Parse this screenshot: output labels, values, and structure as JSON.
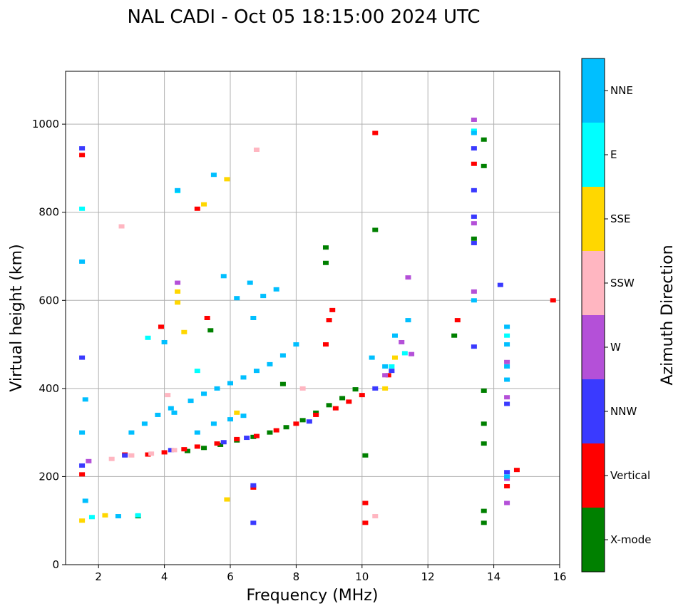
{
  "chart_data": {
    "type": "scatter",
    "title": "NAL CADI - Oct 05 18:15:00 2024 UTC",
    "xlabel": "Frequency (MHz)",
    "ylabel": "Virtual height (km)",
    "xlim": [
      1,
      16
    ],
    "ylim": [
      0,
      1120
    ],
    "xticks": [
      2,
      4,
      6,
      8,
      10,
      12,
      14,
      16
    ],
    "yticks": [
      0,
      200,
      400,
      600,
      800,
      1000
    ],
    "xtick_labels": [
      "2",
      "4",
      "6",
      "8",
      "10",
      "12",
      "14",
      "16"
    ],
    "ytick_labels": [
      "0",
      "200",
      "400",
      "600",
      "800",
      "1000"
    ],
    "grid": true,
    "colorbar": {
      "label": "Azimuth Direction",
      "categories": [
        {
          "name": "X-mode",
          "color": "#008000"
        },
        {
          "name": "Vertical",
          "color": "#ff0000"
        },
        {
          "name": "NNW",
          "color": "#3a3aff"
        },
        {
          "name": "W",
          "color": "#b450d8"
        },
        {
          "name": "SSW",
          "color": "#ffb6c1"
        },
        {
          "name": "SSE",
          "color": "#ffd700"
        },
        {
          "name": "E",
          "color": "#00ffff"
        },
        {
          "name": "NNE",
          "color": "#00bfff"
        }
      ]
    },
    "series": [
      {
        "name": "X-mode",
        "points": [
          [
            4.7,
            258
          ],
          [
            5.2,
            265
          ],
          [
            5.7,
            272
          ],
          [
            6.2,
            282
          ],
          [
            6.7,
            290
          ],
          [
            7.2,
            300
          ],
          [
            7.7,
            312
          ],
          [
            8.2,
            328
          ],
          [
            8.6,
            345
          ],
          [
            9.0,
            362
          ],
          [
            9.4,
            378
          ],
          [
            9.8,
            398
          ],
          [
            5.4,
            532
          ],
          [
            7.6,
            410
          ],
          [
            8.9,
            720
          ],
          [
            8.9,
            685
          ],
          [
            10.4,
            760
          ],
          [
            13.4,
            740
          ],
          [
            13.7,
            965
          ],
          [
            13.7,
            905
          ],
          [
            13.7,
            395
          ],
          [
            13.7,
            320
          ],
          [
            13.7,
            275
          ],
          [
            13.7,
            122
          ],
          [
            13.7,
            95
          ],
          [
            12.8,
            520
          ],
          [
            3.2,
            110
          ],
          [
            10.1,
            248
          ]
        ]
      },
      {
        "name": "Vertical",
        "points": [
          [
            2.8,
            250
          ],
          [
            3.5,
            250
          ],
          [
            4.0,
            255
          ],
          [
            4.6,
            262
          ],
          [
            5.0,
            268
          ],
          [
            5.6,
            275
          ],
          [
            6.2,
            285
          ],
          [
            6.8,
            292
          ],
          [
            7.4,
            305
          ],
          [
            8.0,
            320
          ],
          [
            8.6,
            340
          ],
          [
            9.2,
            355
          ],
          [
            9.6,
            370
          ],
          [
            10.0,
            385
          ],
          [
            10.8,
            430
          ],
          [
            1.5,
            930
          ],
          [
            1.5,
            205
          ],
          [
            3.9,
            540
          ],
          [
            5.3,
            560
          ],
          [
            8.9,
            500
          ],
          [
            9.0,
            555
          ],
          [
            9.1,
            578
          ],
          [
            10.4,
            980
          ],
          [
            10.1,
            140
          ],
          [
            10.1,
            95
          ],
          [
            13.4,
            910
          ],
          [
            12.9,
            555
          ],
          [
            14.7,
            215
          ],
          [
            14.4,
            178
          ],
          [
            15.8,
            600
          ],
          [
            6.7,
            175
          ],
          [
            5.0,
            808
          ]
        ]
      },
      {
        "name": "NNW",
        "points": [
          [
            1.5,
            945
          ],
          [
            1.5,
            470
          ],
          [
            1.5,
            225
          ],
          [
            2.8,
            248
          ],
          [
            4.2,
            260
          ],
          [
            5.8,
            278
          ],
          [
            6.5,
            288
          ],
          [
            8.4,
            325
          ],
          [
            10.4,
            400
          ],
          [
            10.9,
            440
          ],
          [
            13.4,
            495
          ],
          [
            13.4,
            850
          ],
          [
            13.4,
            790
          ],
          [
            13.4,
            945
          ],
          [
            13.4,
            730
          ],
          [
            14.2,
            635
          ],
          [
            14.4,
            210
          ],
          [
            14.4,
            365
          ],
          [
            6.7,
            95
          ],
          [
            6.7,
            180
          ]
        ]
      },
      {
        "name": "W",
        "points": [
          [
            1.7,
            235
          ],
          [
            4.4,
            640
          ],
          [
            11.4,
            652
          ],
          [
            11.5,
            478
          ],
          [
            13.4,
            1010
          ],
          [
            13.4,
            620
          ],
          [
            13.4,
            775
          ],
          [
            14.4,
            460
          ],
          [
            14.4,
            380
          ],
          [
            14.4,
            140
          ],
          [
            14.4,
            195
          ],
          [
            10.7,
            430
          ],
          [
            11.2,
            505
          ]
        ]
      },
      {
        "name": "SSW",
        "points": [
          [
            2.4,
            240
          ],
          [
            3.0,
            248
          ],
          [
            3.6,
            252
          ],
          [
            4.3,
            260
          ],
          [
            8.2,
            400
          ],
          [
            6.8,
            942
          ],
          [
            10.4,
            110
          ],
          [
            4.1,
            385
          ],
          [
            2.7,
            768
          ]
        ]
      },
      {
        "name": "SSE",
        "points": [
          [
            1.5,
            100
          ],
          [
            2.2,
            112
          ],
          [
            4.4,
            620
          ],
          [
            4.4,
            595
          ],
          [
            4.6,
            528
          ],
          [
            5.2,
            818
          ],
          [
            5.9,
            875
          ],
          [
            10.7,
            400
          ],
          [
            11.0,
            470
          ],
          [
            5.9,
            148
          ],
          [
            6.2,
            345
          ]
        ]
      },
      {
        "name": "E",
        "points": [
          [
            1.8,
            108
          ],
          [
            3.2,
            112
          ],
          [
            1.5,
            808
          ],
          [
            4.4,
            848
          ],
          [
            10.9,
            450
          ],
          [
            11.3,
            480
          ],
          [
            13.4,
            985
          ],
          [
            14.4,
            520
          ],
          [
            5.0,
            440
          ],
          [
            3.5,
            515
          ]
        ]
      },
      {
        "name": "NNE",
        "points": [
          [
            1.5,
            688
          ],
          [
            1.5,
            300
          ],
          [
            1.6,
            375
          ],
          [
            1.6,
            145
          ],
          [
            2.6,
            110
          ],
          [
            3.0,
            300
          ],
          [
            3.4,
            320
          ],
          [
            3.8,
            340
          ],
          [
            4.2,
            355
          ],
          [
            4.8,
            372
          ],
          [
            5.2,
            388
          ],
          [
            5.6,
            400
          ],
          [
            6.0,
            412
          ],
          [
            6.4,
            425
          ],
          [
            6.8,
            440
          ],
          [
            7.2,
            455
          ],
          [
            7.6,
            475
          ],
          [
            8.0,
            500
          ],
          [
            4.0,
            505
          ],
          [
            4.3,
            345
          ],
          [
            5.0,
            300
          ],
          [
            5.5,
            320
          ],
          [
            6.0,
            330
          ],
          [
            6.4,
            338
          ],
          [
            6.7,
            560
          ],
          [
            5.8,
            655
          ],
          [
            6.2,
            605
          ],
          [
            6.6,
            640
          ],
          [
            7.0,
            610
          ],
          [
            7.4,
            625
          ],
          [
            10.3,
            470
          ],
          [
            10.7,
            450
          ],
          [
            11.0,
            520
          ],
          [
            11.4,
            555
          ],
          [
            13.4,
            980
          ],
          [
            13.4,
            600
          ],
          [
            14.4,
            540
          ],
          [
            14.4,
            500
          ],
          [
            14.4,
            450
          ],
          [
            14.4,
            420
          ],
          [
            14.4,
            200
          ],
          [
            5.5,
            885
          ],
          [
            4.4,
            850
          ]
        ]
      }
    ]
  }
}
